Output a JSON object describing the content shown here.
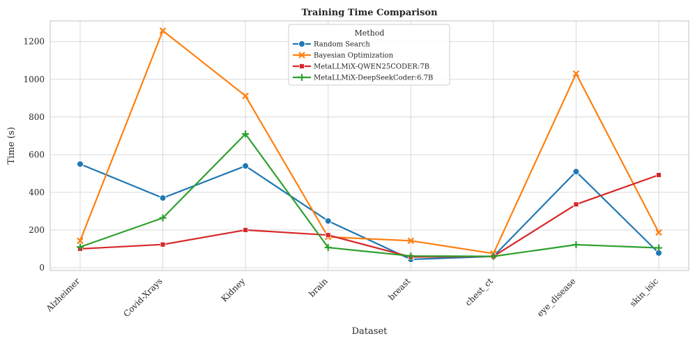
{
  "chart_data": {
    "type": "line",
    "title": "Training Time Comparison",
    "xlabel": "Dataset",
    "ylabel": "Time (s)",
    "ylim": [
      -15,
      1310
    ],
    "yticks": [
      0,
      200,
      400,
      600,
      800,
      1000,
      1200
    ],
    "grid": true,
    "legend_title": "Method",
    "legend_position": "top-center",
    "categories": [
      "Alzheimer",
      "Covid-Xrays",
      "Kidney",
      "brain",
      "breast",
      "chest_ct",
      "eye_disease",
      "skin_isic"
    ],
    "series": [
      {
        "name": "Random Search",
        "color": "#1f77b4",
        "marker": "circle",
        "values": [
          550,
          370,
          540,
          248,
          44,
          60,
          510,
          78
        ]
      },
      {
        "name": "Bayesian Optimization",
        "color": "#ff7f0e",
        "marker": "x",
        "values": [
          143,
          1258,
          912,
          163,
          143,
          75,
          1030,
          187
        ]
      },
      {
        "name": "MetaLLMiX-QWEN25CODER:7B",
        "color": "#d62728",
        "marker": "square",
        "values": [
          100,
          123,
          200,
          173,
          57,
          60,
          336,
          492
        ]
      },
      {
        "name": "MetaLLMiX-DeepSeekCoder:6.7B",
        "color": "#2ca02c",
        "marker": "plus",
        "values": [
          110,
          264,
          710,
          107,
          62,
          60,
          122,
          105
        ]
      }
    ]
  }
}
